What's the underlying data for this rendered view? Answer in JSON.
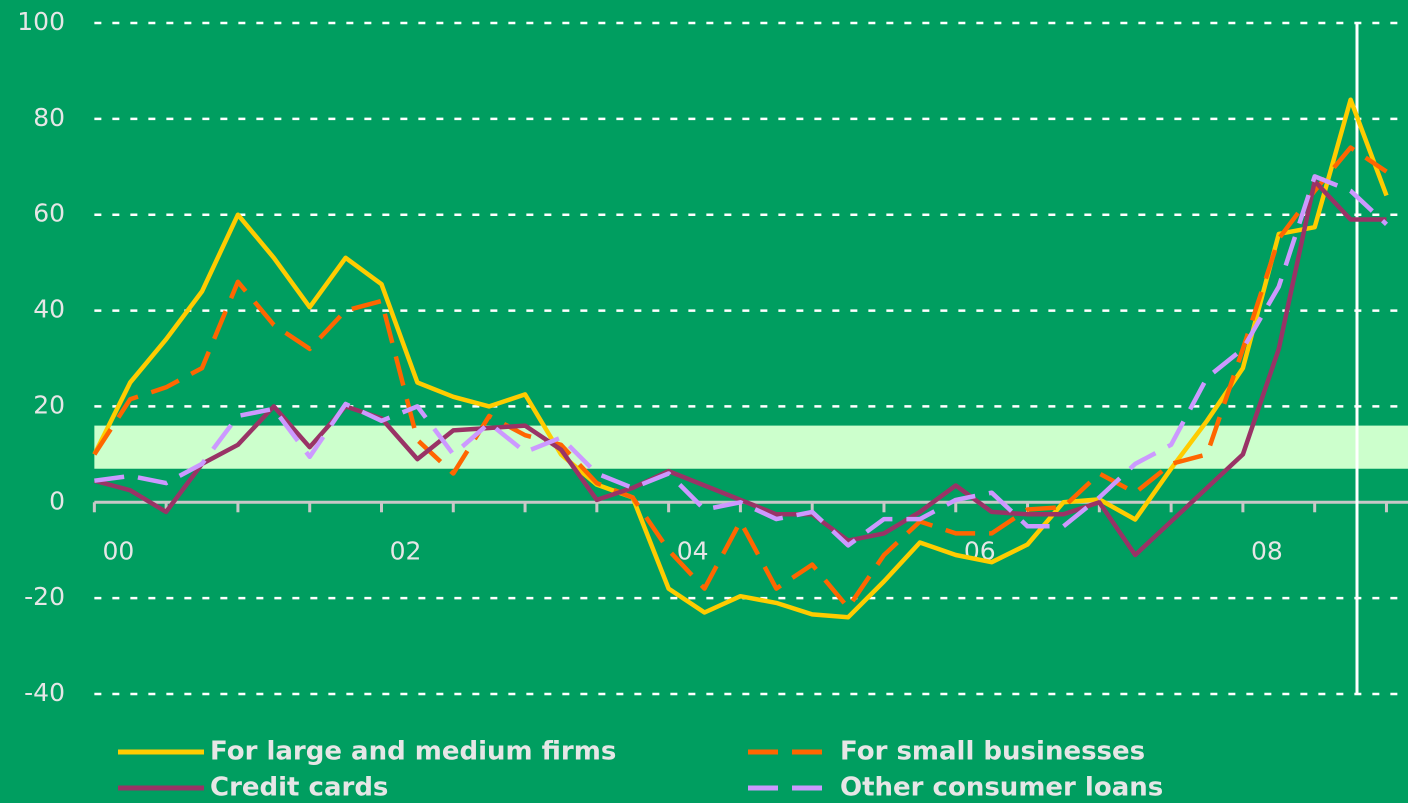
{
  "chart_data": {
    "type": "line",
    "x": [
      2000,
      2000.25,
      2000.5,
      2000.75,
      2001,
      2001.25,
      2001.5,
      2001.75,
      2002,
      2002.25,
      2002.5,
      2002.75,
      2003,
      2003.25,
      2003.5,
      2003.75,
      2004,
      2004.25,
      2004.5,
      2004.75,
      2005,
      2005.25,
      2005.5,
      2005.75,
      2006,
      2006.25,
      2006.5,
      2006.75,
      2007,
      2007.25,
      2007.5,
      2007.75,
      2008,
      2008.25,
      2008.5,
      2008.75,
      2009
    ],
    "series": [
      {
        "name": "For large and medium firms",
        "color": "#ffcc00",
        "dash": false,
        "values": [
          10,
          25,
          34,
          44,
          60,
          51,
          40.7,
          51,
          45.5,
          25,
          22,
          20,
          22.5,
          10,
          3.7,
          1,
          -18,
          -23,
          -19.6,
          -21,
          -23.4,
          -24,
          -16.5,
          -8.4,
          -11,
          -12.5,
          -8.8,
          0,
          0.6,
          -3.6,
          7,
          17,
          28,
          56,
          57.4,
          84,
          64
        ]
      },
      {
        "name": "For small businesses",
        "color": "#ff6600",
        "dash": true,
        "values": [
          10,
          21.5,
          24,
          28,
          46,
          37,
          32,
          40,
          42,
          13,
          6,
          18,
          14,
          12,
          4,
          1,
          -10,
          -18,
          -4,
          -18,
          -13,
          -22,
          -11,
          -4,
          -6.5,
          -6.5,
          -1.5,
          -1,
          6,
          2,
          8,
          10,
          32,
          55,
          65,
          74,
          69
        ]
      },
      {
        "name": "Credit cards",
        "color": "#993366",
        "dash": false,
        "values": [
          4.5,
          2.5,
          -2,
          8,
          12,
          20,
          11.5,
          20,
          17.5,
          9,
          15,
          15.5,
          16,
          11,
          0.5,
          3,
          6.5,
          3.5,
          0.5,
          -2.5,
          -2.5,
          -8,
          -6.5,
          -2,
          3.5,
          -2,
          -2.5,
          -2.5,
          0,
          -11,
          -4,
          3,
          10,
          32,
          67,
          59,
          59
        ]
      },
      {
        "name": "Other consumer loans",
        "color": "#cc99ff",
        "dash": true,
        "values": [
          4.5,
          5.5,
          4,
          8,
          18,
          19.5,
          9.5,
          20.5,
          17,
          20,
          10,
          16.5,
          10.5,
          13.5,
          6,
          3,
          6,
          -1.5,
          0,
          -3.5,
          -2,
          -9,
          -3.5,
          -3.5,
          0.5,
          2,
          -5,
          -5,
          1,
          8,
          12,
          26,
          32,
          45,
          68,
          65,
          58
        ]
      }
    ],
    "xlim": [
      1999.9,
      2009.15
    ],
    "xticks": [
      {
        "value": 2000,
        "label": "00"
      },
      {
        "value": 2002,
        "label": "02"
      },
      {
        "value": 2004,
        "label": "04"
      },
      {
        "value": 2006,
        "label": "06"
      },
      {
        "value": 2008,
        "label": "08"
      }
    ],
    "xminorticks": [
      2000,
      2000.5,
      2001,
      2001.5,
      2002,
      2002.5,
      2003,
      2003.5,
      2004,
      2004.5,
      2005,
      2005.5,
      2006,
      2006.5,
      2007,
      2007.5,
      2008,
      2008.5,
      2009
    ],
    "ylim": [
      -40,
      100
    ],
    "yticks": [
      -40,
      -20,
      0,
      20,
      40,
      60,
      80,
      100
    ],
    "band": [
      7,
      16
    ],
    "grid": true
  }
}
